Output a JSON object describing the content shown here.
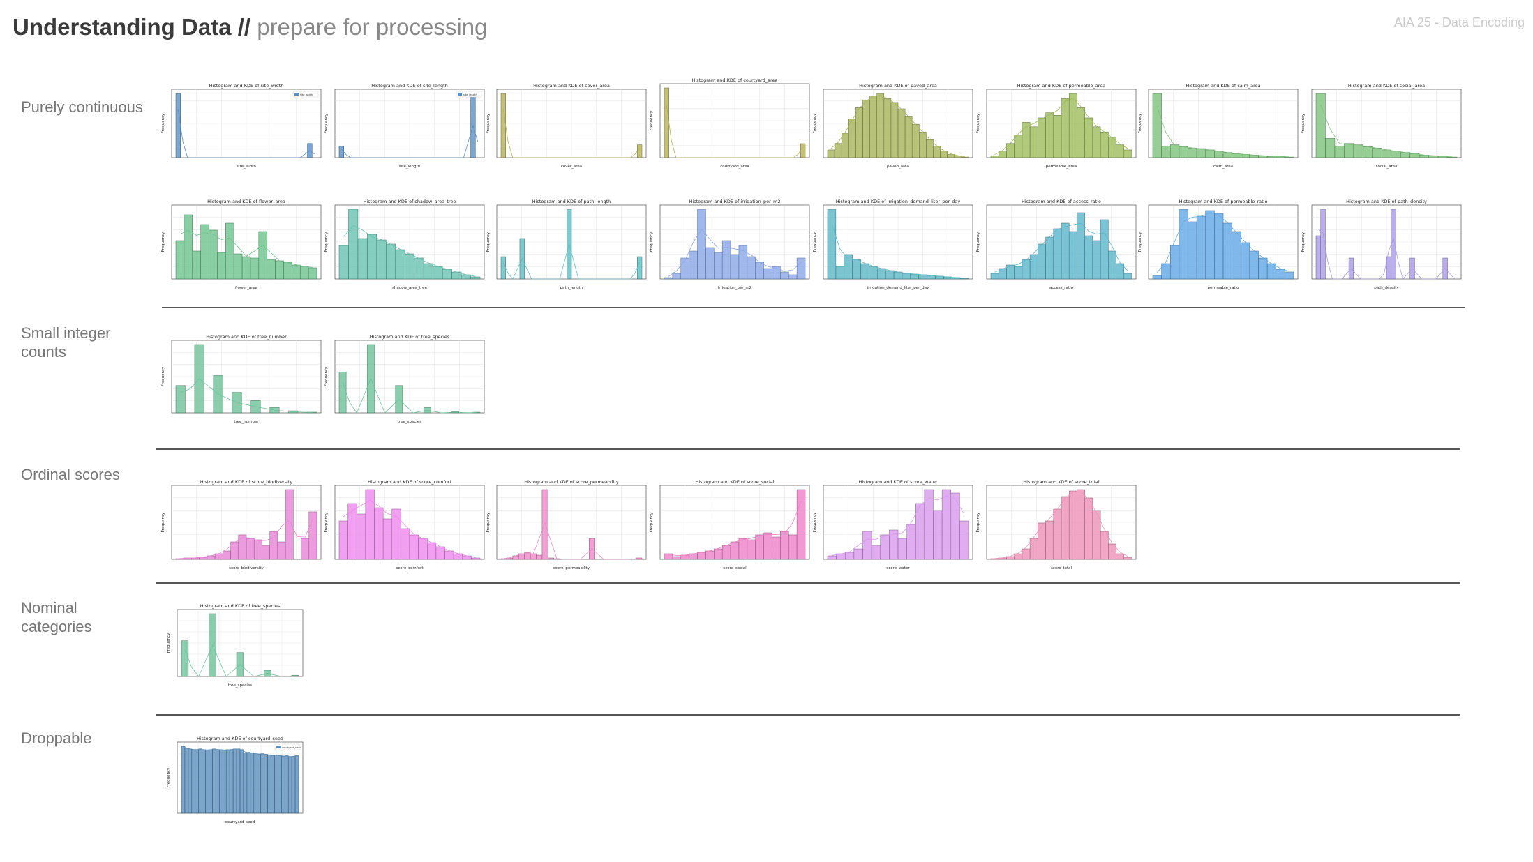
{
  "header": {
    "title_strong": "Understanding Data //",
    "title_light": "prepare for processing",
    "course": "AIA 25 - Data Encoding"
  },
  "categories": [
    {
      "label": "Purely continuous"
    },
    {
      "label": "Small integer counts"
    },
    {
      "label": "Ordinal scores"
    },
    {
      "label": "Nominal categories"
    },
    {
      "label": "Droppable"
    }
  ],
  "chart_data": [
    {
      "id": "site_width",
      "type": "bar",
      "title": "Histogram and KDE of site_width",
      "xlabel": "site_width",
      "ylabel": "Frequency",
      "color": "#5b8ec3",
      "legend": "site_width",
      "values": [
        100,
        0,
        0,
        0,
        0,
        0,
        0,
        0,
        0,
        0,
        0,
        0,
        0,
        0,
        0,
        0,
        0,
        0,
        0,
        0,
        0,
        0,
        0,
        0,
        0,
        0,
        0,
        0,
        22,
        0
      ]
    },
    {
      "id": "site_length",
      "type": "bar",
      "title": "Histogram and KDE of site_length",
      "xlabel": "site_length",
      "ylabel": "Frequency",
      "color": "#5b8ec3",
      "legend": "site_length",
      "values": [
        18,
        0,
        0,
        0,
        0,
        0,
        0,
        0,
        0,
        0,
        0,
        0,
        0,
        0,
        0,
        0,
        0,
        0,
        0,
        0,
        0,
        0,
        0,
        0,
        0,
        0,
        0,
        0,
        100,
        0
      ]
    },
    {
      "id": "cover_area",
      "type": "bar",
      "title": "Histogram and KDE of cover_area",
      "xlabel": "cover_area",
      "ylabel": "Frequency",
      "color": "#b5b05a",
      "values": [
        100,
        0,
        0,
        0,
        0,
        0,
        0,
        0,
        0,
        0,
        0,
        0,
        0,
        0,
        0,
        0,
        0,
        0,
        0,
        0,
        0,
        0,
        0,
        0,
        0,
        0,
        0,
        0,
        0,
        20
      ]
    },
    {
      "id": "courtyard_area",
      "type": "bar",
      "title": "Histogram and KDE of courtyard_area",
      "xlabel": "courtyard_area",
      "ylabel": "Frequency",
      "color": "#b5b05a",
      "values": [
        100,
        0,
        0,
        0,
        0,
        0,
        0,
        0,
        0,
        0,
        0,
        0,
        0,
        0,
        0,
        0,
        0,
        0,
        0,
        0,
        0,
        0,
        0,
        0,
        0,
        0,
        0,
        0,
        0,
        20
      ]
    },
    {
      "id": "paved_area",
      "type": "bar",
      "title": "Histogram and KDE of paved_area",
      "xlabel": "paved_area",
      "ylabel": "Frequency",
      "color": "#a6b35a",
      "values": [
        12,
        22,
        38,
        60,
        78,
        90,
        96,
        100,
        92,
        86,
        76,
        64,
        52,
        40,
        28,
        18,
        10,
        5,
        3,
        1
      ]
    },
    {
      "id": "permeable_area",
      "type": "bar",
      "title": "Histogram and KDE of permeable_area",
      "xlabel": "permeable_area",
      "ylabel": "Frequency",
      "color": "#9cbb5a",
      "values": [
        3,
        10,
        22,
        35,
        55,
        48,
        62,
        70,
        66,
        92,
        100,
        78,
        62,
        48,
        40,
        32,
        20,
        12
      ]
    },
    {
      "id": "calm_area",
      "type": "bar",
      "title": "Histogram and KDE of calm_area",
      "xlabel": "calm_area",
      "ylabel": "Frequency",
      "color": "#7cc27a",
      "values": [
        100,
        18,
        20,
        17,
        15,
        14,
        12,
        10,
        8,
        6,
        5,
        4,
        3,
        2,
        2,
        1
      ]
    },
    {
      "id": "social_area",
      "type": "bar",
      "title": "Histogram and KDE of social_area",
      "xlabel": "social_area",
      "ylabel": "Frequency",
      "color": "#7cc27a",
      "values": [
        100,
        30,
        18,
        22,
        20,
        17,
        15,
        12,
        10,
        8,
        6,
        4,
        3,
        2,
        1
      ]
    },
    {
      "id": "flower_area",
      "type": "bar",
      "title": "Histogram and KDE of flower_area",
      "xlabel": "flower_area",
      "ylabel": "Frequency",
      "color": "#6dc28c",
      "values": [
        55,
        92,
        40,
        78,
        70,
        38,
        80,
        36,
        32,
        30,
        68,
        28,
        26,
        24,
        20,
        18,
        16
      ]
    },
    {
      "id": "shadow_area_tree",
      "type": "bar",
      "title": "Histogram and KDE of shadow_area_tree",
      "xlabel": "shadow_area_tree",
      "ylabel": "Frequency",
      "color": "#66c2b0",
      "values": [
        48,
        100,
        58,
        64,
        56,
        50,
        42,
        36,
        30,
        22,
        18,
        14,
        10,
        6,
        3
      ]
    },
    {
      "id": "path_length",
      "type": "bar",
      "title": "Histogram and KDE of path_length",
      "xlabel": "path_length",
      "ylabel": "Frequency",
      "color": "#60bcc0",
      "values": [
        32,
        0,
        0,
        0,
        58,
        0,
        0,
        0,
        0,
        0,
        0,
        0,
        0,
        0,
        100,
        0,
        0,
        0,
        0,
        0,
        0,
        0,
        0,
        0,
        0,
        0,
        0,
        0,
        0,
        32
      ]
    },
    {
      "id": "irrigation_per_m2",
      "type": "bar",
      "title": "Histogram and KDE of irrigation_per_m2",
      "xlabel": "irrigation_per_m2",
      "ylabel": "Frequency",
      "color": "#8aa6e8",
      "values": [
        2,
        8,
        30,
        40,
        100,
        45,
        38,
        55,
        35,
        48,
        32,
        24,
        15,
        18,
        10,
        6,
        30
      ]
    },
    {
      "id": "irrigation_demand_liter_per_day",
      "type": "bar",
      "title": "Histogram and KDE of irrigation_demand_liter_per_day",
      "xlabel": "irrigation_demand_liter_per_day",
      "ylabel": "Frequency",
      "color": "#5ab7c5",
      "values": [
        100,
        18,
        35,
        28,
        22,
        18,
        15,
        12,
        10,
        8,
        7,
        6,
        5,
        4,
        3,
        2,
        1
      ]
    },
    {
      "id": "access_ratio",
      "type": "bar",
      "title": "Histogram and KDE of access_ratio",
      "xlabel": "access_ratio",
      "ylabel": "Frequency",
      "color": "#5ab5cc",
      "values": [
        8,
        15,
        20,
        18,
        28,
        35,
        50,
        60,
        72,
        80,
        68,
        95,
        62,
        55,
        85,
        40,
        22,
        8
      ]
    },
    {
      "id": "permeable_ratio",
      "type": "bar",
      "title": "Histogram and KDE of permeable_ratio",
      "xlabel": "permeable_ratio",
      "ylabel": "Frequency",
      "color": "#5fa8e6",
      "values": [
        5,
        22,
        48,
        100,
        82,
        90,
        98,
        94,
        80,
        68,
        52,
        40,
        30,
        22,
        14,
        10
      ]
    },
    {
      "id": "path_density",
      "type": "bar",
      "title": "Histogram and KDE of path_density",
      "xlabel": "path_density",
      "ylabel": "Frequency",
      "color": "#a99ae8",
      "values": [
        62,
        100,
        0,
        0,
        0,
        0,
        0,
        30,
        0,
        0,
        0,
        0,
        0,
        0,
        0,
        32,
        100,
        0,
        0,
        0,
        30,
        0,
        0,
        0,
        0,
        0,
        0,
        30,
        0,
        0
      ]
    },
    {
      "id": "tree_number",
      "type": "bar",
      "title": "Histogram and KDE of tree_number",
      "xlabel": "tree_number",
      "ylabel": "Frequency",
      "color": "#6dc29a",
      "values": [
        40,
        0,
        100,
        0,
        55,
        0,
        30,
        0,
        18,
        0,
        8,
        0,
        3,
        0,
        1
      ]
    },
    {
      "id": "tree_species_small",
      "type": "bar",
      "title": "Histogram and KDE of tree_species",
      "xlabel": "tree_species",
      "ylabel": "Frequency",
      "color": "#6dc29a",
      "values": [
        60,
        0,
        0,
        0,
        100,
        0,
        0,
        0,
        40,
        0,
        0,
        0,
        8,
        0,
        0,
        0,
        2,
        0,
        0,
        1
      ]
    },
    {
      "id": "score_biodiversity",
      "type": "bar",
      "title": "Histogram and KDE of score_biodiversity",
      "xlabel": "score_biodiversity",
      "ylabel": "Frequency",
      "color": "#e783d6",
      "values": [
        1,
        2,
        2,
        3,
        5,
        8,
        12,
        25,
        35,
        30,
        28,
        20,
        40,
        25,
        100,
        0,
        30,
        68
      ]
    },
    {
      "id": "score_comfort",
      "type": "bar",
      "title": "Histogram and KDE of score_comfort",
      "xlabel": "score_comfort",
      "ylabel": "Frequency",
      "color": "#ee88ee",
      "values": [
        55,
        80,
        65,
        100,
        74,
        58,
        72,
        44,
        35,
        30,
        24,
        18,
        12,
        8,
        5,
        2
      ]
    },
    {
      "id": "score_permeability",
      "type": "bar",
      "title": "Histogram and KDE of score_permeability",
      "xlabel": "score_permeability",
      "ylabel": "Frequency",
      "color": "#ee88c8",
      "values": [
        1,
        2,
        5,
        8,
        10,
        8,
        6,
        100,
        2,
        1,
        0,
        0,
        0,
        0,
        0,
        30,
        0,
        0,
        0,
        0,
        0,
        0,
        0,
        2
      ]
    },
    {
      "id": "score_social",
      "type": "bar",
      "title": "Histogram and KDE of score_social",
      "xlabel": "score_social",
      "ylabel": "Frequency",
      "color": "#ee80c8",
      "values": [
        8,
        4,
        6,
        8,
        10,
        12,
        15,
        20,
        25,
        30,
        28,
        35,
        38,
        32,
        40,
        35,
        100
      ]
    },
    {
      "id": "score_water",
      "type": "bar",
      "title": "Histogram and KDE of score_water",
      "xlabel": "score_water",
      "ylabel": "Frequency",
      "color": "#d898ee",
      "values": [
        5,
        8,
        10,
        15,
        40,
        20,
        35,
        42,
        30,
        50,
        80,
        100,
        70,
        100,
        95,
        55
      ]
    },
    {
      "id": "score_total",
      "type": "bar",
      "title": "Histogram and KDE of score_total",
      "xlabel": "score_total",
      "ylabel": "Frequency",
      "color": "#ee90b8",
      "values": [
        1,
        2,
        4,
        8,
        15,
        30,
        52,
        55,
        72,
        90,
        98,
        100,
        88,
        70,
        40,
        22,
        8,
        3
      ]
    },
    {
      "id": "tree_species_nominal",
      "type": "bar",
      "title": "Histogram and KDE of tree_species",
      "xlabel": "tree_species",
      "ylabel": "Frequency",
      "color": "#6dc29a",
      "values": [
        57,
        0,
        0,
        0,
        100,
        0,
        0,
        0,
        38,
        0,
        0,
        0,
        10,
        0,
        0,
        0,
        2
      ]
    },
    {
      "id": "courtyard_seed",
      "type": "bar",
      "title": "Histogram and KDE of courtyard_seed",
      "xlabel": "courtyard_seed",
      "ylabel": "Frequency",
      "color": "#5a8fbd",
      "legend": "courtyard_seed",
      "values": [
        100,
        97,
        96,
        95,
        95,
        96,
        95,
        94,
        95,
        96,
        95,
        95,
        94,
        95,
        95,
        96,
        96,
        95,
        90,
        91,
        90,
        89,
        88,
        89,
        88,
        87,
        86,
        87,
        86,
        85,
        86,
        84,
        85,
        86
      ]
    }
  ]
}
